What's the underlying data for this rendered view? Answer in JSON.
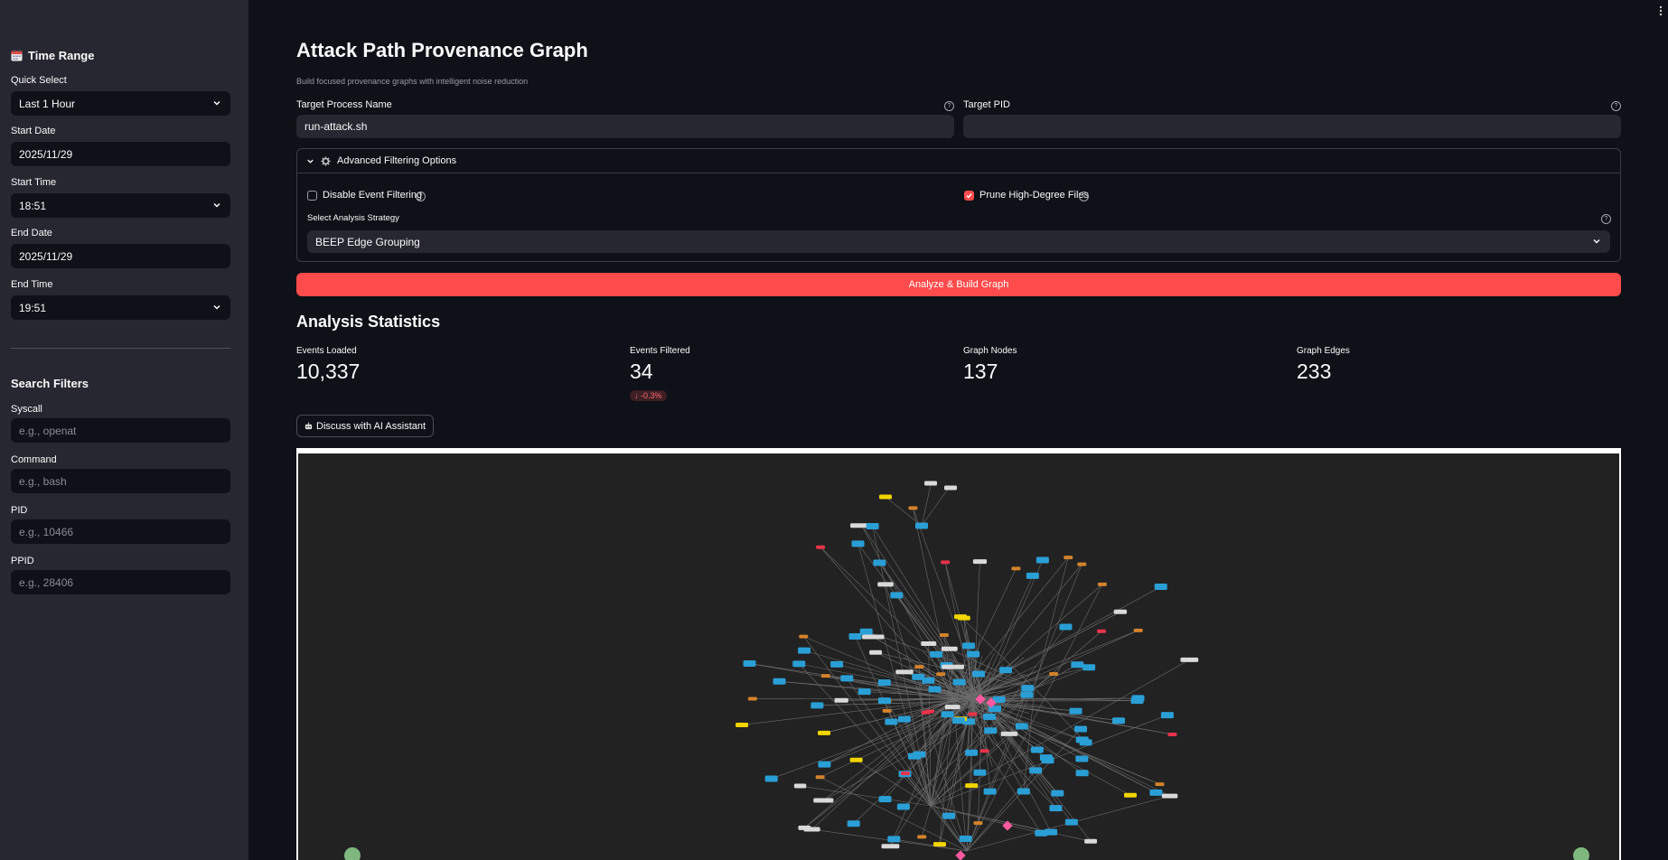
{
  "sidebar": {
    "time_range": {
      "heading": "Time Range",
      "quick_select_label": "Quick Select",
      "quick_select_value": "Last 1 Hour",
      "start_date_label": "Start Date",
      "start_date_value": "2025/11/29",
      "start_time_label": "Start Time",
      "start_time_value": "18:51",
      "end_date_label": "End Date",
      "end_date_value": "2025/11/29",
      "end_time_label": "End Time",
      "end_time_value": "19:51"
    },
    "search_filters": {
      "heading": "Search Filters",
      "syscall_label": "Syscall",
      "syscall_placeholder": "e.g., openat",
      "command_label": "Command",
      "command_placeholder": "e.g., bash",
      "pid_label": "PID",
      "pid_placeholder": "e.g., 10466",
      "ppid_label": "PPID",
      "ppid_placeholder": "e.g., 28406"
    }
  },
  "main": {
    "title": "Attack Path Provenance Graph",
    "subtitle": "Build focused provenance graphs with intelligent noise reduction",
    "target_process_label": "Target Process Name",
    "target_process_value": "run-attack.sh",
    "target_pid_label": "Target PID",
    "target_pid_value": "",
    "advanced": {
      "title": "Advanced Filtering Options",
      "disable_filtering_label": "Disable Event Filtering",
      "disable_filtering_checked": false,
      "prune_label": "Prune High-Degree Files",
      "prune_checked": true,
      "strategy_label": "Select Analysis Strategy",
      "strategy_value": "BEEP Edge Grouping"
    },
    "analyze_button": "Analyze & Build Graph",
    "stats": {
      "heading": "Analysis Statistics",
      "metrics": [
        {
          "label": "Events Loaded",
          "value": "10,337"
        },
        {
          "label": "Events Filtered",
          "value": "34",
          "delta": "-0.3%"
        },
        {
          "label": "Graph Nodes",
          "value": "137"
        },
        {
          "label": "Graph Edges",
          "value": "233"
        }
      ]
    },
    "ai_button": "Discuss with AI Assistant"
  },
  "colors": {
    "accent": "#ff4b4b",
    "process_node": "#2a9fd6",
    "file_node": "#d4822a",
    "socket_node": "#f2d500",
    "other_node": "#d9d9d9",
    "alert_node": "#e8334a",
    "target_node": "#ff5aa0"
  },
  "icons": {
    "calendar": "calendar-icon",
    "gear": "gear-icon",
    "help": "help-circle-icon",
    "chevron": "chevron-down-icon",
    "robot": "robot-icon",
    "menu": "kebab-menu-icon"
  }
}
